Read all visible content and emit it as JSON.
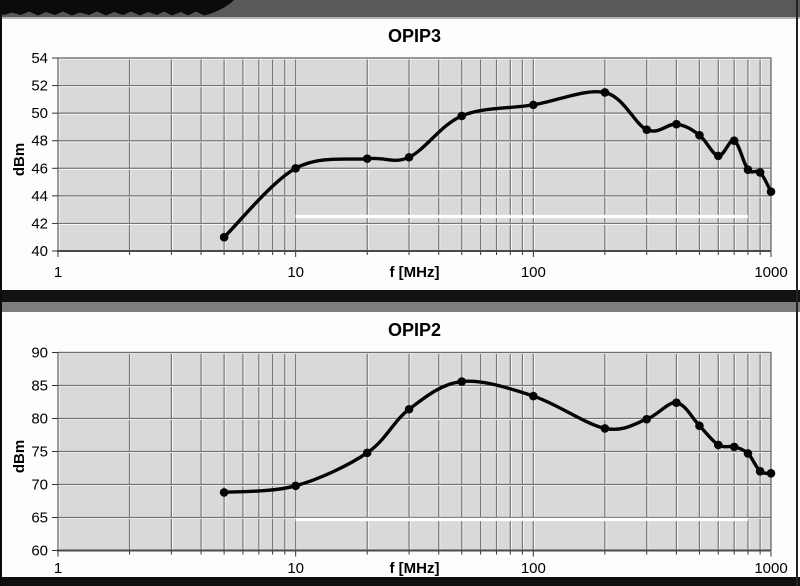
{
  "colors": {
    "plot_bg": "#d9d9d9",
    "gridline": "#757575",
    "grid_highlight": "#ffffff",
    "curve": "#050505",
    "ref_line": "#ffffff",
    "axis": "#4a4a4a",
    "frame": "#6f6f6f",
    "tick": "#333333",
    "top_bar": "#595959",
    "separator_gray": "#7d7d7d",
    "banner_black": "#0b0b0b"
  },
  "chart_data": [
    {
      "type": "line",
      "title": "OPIP3",
      "ylabel": "dBm",
      "xlabel": "f [MHz]",
      "x_scale": "log",
      "grid": true,
      "legend": "none",
      "xlim": [
        1,
        1000
      ],
      "ylim": [
        40,
        54
      ],
      "ytick_step": 2,
      "xtick_labels": [
        "1",
        "10",
        "100",
        "1000"
      ],
      "x": [
        5,
        10,
        20,
        30,
        50,
        100,
        200,
        300,
        400,
        500,
        600,
        700,
        800,
        900,
        1000
      ],
      "y": [
        41.0,
        46.0,
        46.7,
        46.8,
        49.8,
        50.6,
        51.5,
        48.8,
        49.2,
        48.4,
        46.9,
        48.0,
        45.9,
        45.7,
        44.3
      ],
      "ref_line": {
        "value": 42.5,
        "x_start": 10,
        "x_end": 800
      }
    },
    {
      "type": "line",
      "title": "OPIP2",
      "ylabel": "dBm",
      "xlabel": "f [MHz]",
      "x_scale": "log",
      "grid": true,
      "legend": "none",
      "xlim": [
        1,
        1000
      ],
      "ylim": [
        60,
        90
      ],
      "ytick_step": 5,
      "xtick_labels": [
        "1",
        "10",
        "100",
        "1000"
      ],
      "x": [
        5,
        10,
        20,
        30,
        50,
        100,
        200,
        300,
        400,
        500,
        600,
        700,
        800,
        900,
        1000
      ],
      "y": [
        68.8,
        69.8,
        74.8,
        81.4,
        85.6,
        83.4,
        78.5,
        79.9,
        82.4,
        78.9,
        76.0,
        75.7,
        74.7,
        72.0,
        71.7
      ],
      "ref_line": {
        "value": 64.7,
        "x_start": 10,
        "x_end": 800
      }
    }
  ]
}
